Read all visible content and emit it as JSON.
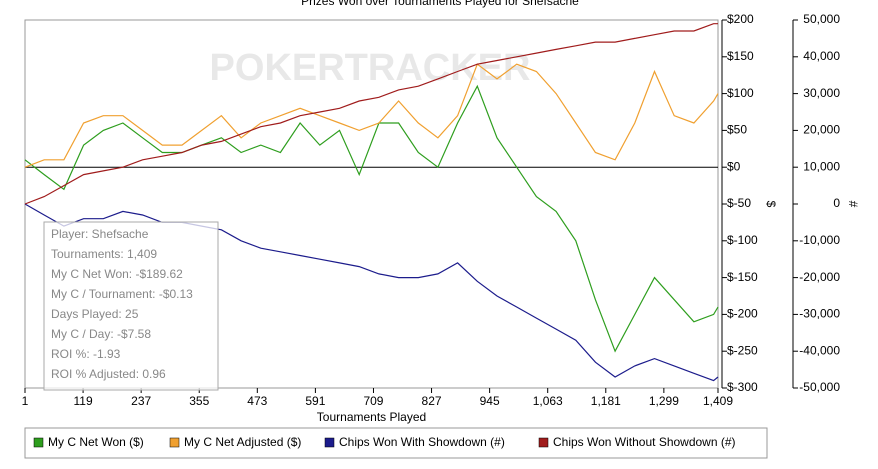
{
  "chart_data": {
    "type": "line",
    "title": "Prizes Won over Tournaments Played for Shefsache",
    "watermark": "POKERTRACKER",
    "xlabel": "Tournaments Played",
    "ylabel": "$",
    "y2label": "#",
    "x": [
      1,
      40,
      80,
      120,
      160,
      200,
      240,
      280,
      320,
      360,
      400,
      440,
      480,
      520,
      560,
      600,
      640,
      680,
      720,
      760,
      800,
      840,
      880,
      920,
      960,
      1000,
      1040,
      1080,
      1120,
      1160,
      1200,
      1240,
      1280,
      1320,
      1360,
      1400,
      1409
    ],
    "series": [
      {
        "name": "My C Net Won ($)",
        "color": "#2e9e1e",
        "values": [
          10,
          -10,
          -30,
          30,
          50,
          60,
          40,
          20,
          20,
          30,
          40,
          20,
          30,
          20,
          60,
          30,
          50,
          -10,
          60,
          60,
          20,
          0,
          60,
          110,
          40,
          0,
          -40,
          -60,
          -100,
          -180,
          -250,
          -200,
          -150,
          -180,
          -210,
          -200,
          -190
        ]
      },
      {
        "name": "My C Net Adjusted ($)",
        "color": "#f0a030",
        "values": [
          0,
          10,
          10,
          60,
          70,
          70,
          50,
          30,
          30,
          50,
          70,
          40,
          60,
          70,
          80,
          70,
          60,
          50,
          60,
          90,
          60,
          40,
          70,
          140,
          120,
          140,
          130,
          100,
          60,
          20,
          10,
          60,
          130,
          70,
          60,
          90,
          100
        ]
      },
      {
        "name": "Chips Won With Showdown (#)",
        "color": "#1c1c8c",
        "axis": "y2",
        "values": [
          0,
          -3000,
          -6000,
          -4000,
          -4000,
          -2000,
          -3000,
          -5000,
          -5000,
          -6000,
          -7000,
          -10000,
          -12000,
          -13000,
          -14000,
          -15000,
          -16000,
          -17000,
          -19000,
          -20000,
          -20000,
          -19000,
          -16000,
          -21000,
          -25000,
          -28000,
          -31000,
          -34000,
          -37000,
          -43000,
          -47000,
          -44000,
          -42000,
          -44000,
          -46000,
          -48000,
          -47000
        ]
      },
      {
        "name": "Chips Won Without Showdown (#)",
        "color": "#a01c1c",
        "axis": "y2",
        "values": [
          0,
          2000,
          5000,
          8000,
          9000,
          10000,
          12000,
          13000,
          14000,
          16000,
          17000,
          19000,
          21000,
          22000,
          24000,
          25000,
          26000,
          28000,
          29000,
          31000,
          32000,
          34000,
          36000,
          38000,
          39000,
          40000,
          41000,
          42000,
          43000,
          44000,
          44000,
          45000,
          46000,
          47000,
          47000,
          49000,
          49000
        ]
      }
    ],
    "xlim": [
      1,
      1409
    ],
    "xticks": [
      1,
      119,
      237,
      355,
      473,
      591,
      709,
      827,
      945,
      {
        "value": 1063,
        "label": "1,063"
      },
      {
        "value": 1181,
        "label": "1,181"
      },
      {
        "value": 1299,
        "label": "1,299"
      },
      {
        "value": 1409,
        "label": "1,409"
      }
    ],
    "ylim": [
      -300,
      200
    ],
    "yticks": [
      {
        "value": 200,
        "label": "$200"
      },
      {
        "value": 150,
        "label": "$150"
      },
      {
        "value": 100,
        "label": "$100"
      },
      {
        "value": 50,
        "label": "$50"
      },
      {
        "value": 0,
        "label": "$0"
      },
      {
        "value": -50,
        "label": "$-50"
      },
      {
        "value": -100,
        "label": "$-100"
      },
      {
        "value": -150,
        "label": "$-150"
      },
      {
        "value": -200,
        "label": "$-200"
      },
      {
        "value": -250,
        "label": "$-250"
      },
      {
        "value": -300,
        "label": "$-300"
      }
    ],
    "y2lim": [
      -50000,
      50000
    ],
    "y2ticks": [
      {
        "value": 50000,
        "label": "50,000"
      },
      {
        "value": 40000,
        "label": "40,000"
      },
      {
        "value": 30000,
        "label": "30,000"
      },
      {
        "value": 20000,
        "label": "20,000"
      },
      {
        "value": 10000,
        "label": "10,000"
      },
      0,
      {
        "value": -10000,
        "label": "-10,000"
      },
      {
        "value": -20000,
        "label": "-20,000"
      },
      {
        "value": -30000,
        "label": "-30,000"
      },
      {
        "value": -40000,
        "label": "-40,000"
      },
      {
        "value": -50000,
        "label": "-50,000"
      }
    ],
    "tooltip": [
      "Player: Shefsache",
      "Tournaments: 1,409",
      "My C Net Won: -$189.62",
      "My C / Tournament: -$0.13",
      "Days Played: 25",
      "My C / Day: -$7.58",
      "ROI %: -1.93",
      "ROI % Adjusted: 0.96"
    ]
  }
}
